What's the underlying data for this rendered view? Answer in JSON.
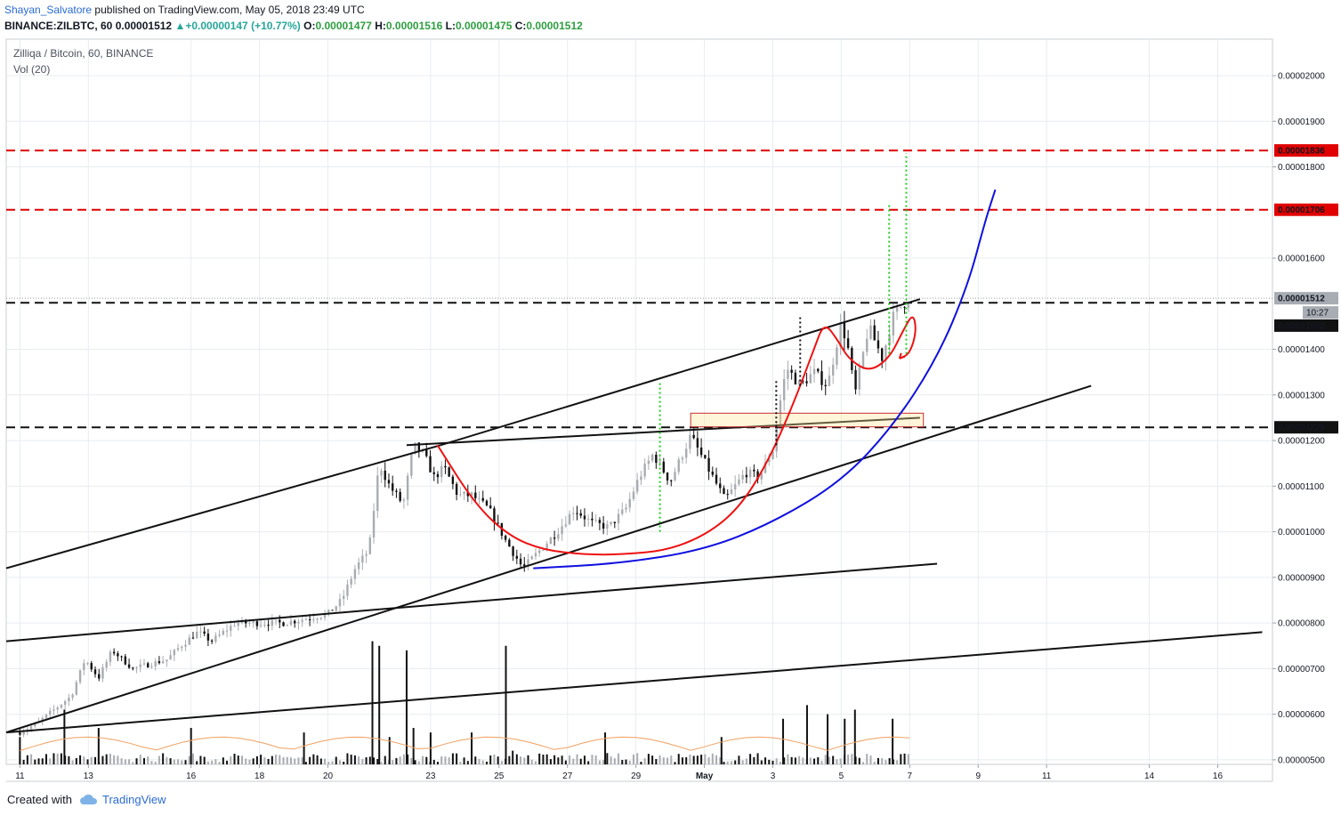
{
  "header": {
    "author": "Shayan_Salvatore",
    "published_text": "published on TradingView.com, May 05, 2018 23:49 UTC",
    "symbol": "BINANCE:ZILBTC, 60",
    "last": "0.00001512",
    "change": "+0.00000147 (+10.77%)",
    "open_label": "O:",
    "open": "0.00001477",
    "high_label": "H:",
    "high": "0.00001516",
    "low_label": "L:",
    "low": "0.00001475",
    "close_label": "C:",
    "close": "0.00001512"
  },
  "legend": {
    "title": "Zilliqa / Bitcoin, 60, BINANCE",
    "volume": "Vol (20)"
  },
  "footer": {
    "created_with": "Created with",
    "brand": "TradingView"
  },
  "colors": {
    "up": "#26a69a",
    "price_tag": "#e00000",
    "hline_red": "#e00000",
    "blue_curve": "#1010e0",
    "red_curve": "#ee1111",
    "green_dots": "#22cc22",
    "grid": "#e8ecf0"
  },
  "chart_data": {
    "type": "candlestick",
    "symbol": "ZILBTC",
    "exchange": "BINANCE",
    "interval": "60",
    "y_ticks": [
      "0.00002000",
      "0.00001900",
      "0.00001800",
      "0.00001600",
      "0.00001400",
      "0.00001300",
      "0.00001200",
      "0.00001100",
      "0.00001000",
      "0.00000900",
      "0.00000800",
      "0.00000700",
      "0.00000600",
      "0.00000500"
    ],
    "y_tick_values": [
      2e-05,
      1.9e-05,
      1.8e-05,
      1.6e-05,
      1.4e-05,
      1.3e-05,
      1.2e-05,
      1.1e-05,
      1e-05,
      9e-06,
      8e-06,
      7e-06,
      6e-06,
      5e-06
    ],
    "x_ticks": [
      "11",
      "13",
      "16",
      "18",
      "20",
      "23",
      "25",
      "27",
      "29",
      "May",
      "3",
      "5",
      "7",
      "9",
      "11",
      "14",
      "16"
    ],
    "x_tick_day_offsets": [
      0,
      2,
      5,
      7,
      9,
      12,
      14,
      16,
      18,
      20,
      22,
      24,
      26,
      28,
      30,
      33,
      35
    ],
    "price_labels": {
      "red_high": "0.00001836",
      "red_mid": "0.00001706",
      "last_price": "0.00001512",
      "countdown": "10:27",
      "black_upper": "0.00001502",
      "black_lower": "0.00001229"
    },
    "horizontal_levels": [
      {
        "value": 1.836e-05,
        "style": "red-dashed"
      },
      {
        "value": 1.706e-05,
        "style": "red-dashed"
      },
      {
        "value": 1.502e-05,
        "style": "black-dashed"
      },
      {
        "value": 1.229e-05,
        "style": "black-dashed"
      }
    ],
    "price_path": [
      [
        0,
        5.6e-06
      ],
      [
        0.5,
        5.8e-06
      ],
      [
        1,
        6.1e-06
      ],
      [
        1.5,
        6.4e-06
      ],
      [
        1.9,
        7.2e-06
      ],
      [
        2.3,
        6.8e-06
      ],
      [
        2.7,
        7.4e-06
      ],
      [
        3.3,
        7e-06
      ],
      [
        3.8,
        7.1e-06
      ],
      [
        4.3,
        7.2e-06
      ],
      [
        4.7,
        7.5e-06
      ],
      [
        5.2,
        7.8e-06
      ],
      [
        5.6,
        7.6e-06
      ],
      [
        6.3,
        8e-06
      ],
      [
        7,
        8e-06
      ],
      [
        7.7,
        8e-06
      ],
      [
        8.4,
        8.1e-06
      ],
      [
        9,
        8.2e-06
      ],
      [
        9.4,
        8.5e-06
      ],
      [
        9.8,
        9.2e-06
      ],
      [
        10.2,
        9.6e-06
      ],
      [
        10.5,
        1.15e-05
      ],
      [
        10.8,
        1.1e-05
      ],
      [
        11.2,
        1.06e-05
      ],
      [
        11.5,
        1.19e-05
      ],
      [
        11.8,
        1.17e-05
      ],
      [
        12.1,
        1.12e-05
      ],
      [
        12.4,
        1.14e-05
      ],
      [
        12.8,
        1.08e-05
      ],
      [
        13.2,
        1.08e-05
      ],
      [
        13.7,
        1.05e-05
      ],
      [
        14.2,
        9.8e-06
      ],
      [
        14.7,
        9.2e-06
      ],
      [
        15.2,
        9.6e-06
      ],
      [
        15.7,
        1e-05
      ],
      [
        16.2,
        1.05e-05
      ],
      [
        16.7,
        1.02e-05
      ],
      [
        17.2,
        1.01e-05
      ],
      [
        17.7,
        1.05e-05
      ],
      [
        18.1,
        1.12e-05
      ],
      [
        18.5,
        1.17e-05
      ],
      [
        19,
        1.11e-05
      ],
      [
        19.6,
        1.21e-05
      ],
      [
        20.1,
        1.14e-05
      ],
      [
        20.6,
        1.07e-05
      ],
      [
        21.2,
        1.13e-05
      ],
      [
        21.6,
        1.12e-05
      ],
      [
        22,
        1.18e-05
      ],
      [
        22.2,
        1.28e-05
      ],
      [
        22.4,
        1.36e-05
      ],
      [
        22.8,
        1.32e-05
      ],
      [
        23.2,
        1.35e-05
      ],
      [
        23.6,
        1.32e-05
      ],
      [
        24,
        1.46e-05
      ],
      [
        24.2,
        1.4e-05
      ],
      [
        24.4,
        1.3e-05
      ],
      [
        24.8,
        1.45e-05
      ],
      [
        25.2,
        1.38e-05
      ],
      [
        25.5,
        1.47e-05
      ],
      [
        25.8,
        1.5e-05
      ],
      [
        26,
        1.51e-05
      ]
    ],
    "volume_spikes": [
      [
        0,
        5.5e-06
      ],
      [
        1.3,
        6.1e-06
      ],
      [
        2.3,
        5.7e-06
      ],
      [
        5,
        5.7e-06
      ],
      [
        8.3,
        5.6e-06
      ],
      [
        10.3,
        7.6e-06
      ],
      [
        10.5,
        7.5e-06
      ],
      [
        10.8,
        5.5e-06
      ],
      [
        11.3,
        7.4e-06
      ],
      [
        11.5,
        5.7e-06
      ],
      [
        12,
        5.6e-06
      ],
      [
        13.2,
        5.6e-06
      ],
      [
        14.2,
        7.5e-06
      ],
      [
        14.4,
        5.2e-06
      ],
      [
        17.1,
        5.6e-06
      ],
      [
        20.5,
        5.5e-06
      ],
      [
        22.3,
        5.9e-06
      ],
      [
        23,
        6.2e-06
      ],
      [
        23.6,
        6e-06
      ],
      [
        24.1,
        5.9e-06
      ],
      [
        24.4,
        6.1e-06
      ],
      [
        25.5,
        5.9e-06
      ]
    ],
    "trendlines": [
      {
        "from": [
          -0.4,
          9.2e-06
        ],
        "to": [
          12.3,
          1.19e-05
        ],
        "color": "black"
      },
      {
        "from": [
          12.3,
          1.19e-05
        ],
        "to": [
          26.3,
          1.51e-05
        ],
        "color": "black"
      },
      {
        "from": [
          -0.4,
          5.6e-06
        ],
        "to": [
          31.3,
          1.32e-05
        ],
        "color": "black"
      },
      {
        "from": [
          -0.4,
          7.6e-06
        ],
        "to": [
          10.5,
          8.3e-06
        ],
        "color": "black"
      },
      {
        "from": [
          10.5,
          8.3e-06
        ],
        "to": [
          26.8,
          9.3e-06
        ],
        "color": "black"
      },
      {
        "from": [
          11.3,
          1.19e-05
        ],
        "to": [
          26.3,
          1.25e-05
        ],
        "color": "black"
      },
      {
        "from": [
          -0.4,
          5.6e-06
        ],
        "to": [
          36.3,
          7.8e-06
        ],
        "color": "black"
      }
    ],
    "curves": [
      {
        "name": "",
        "color": "blue",
        "points": [
          [
            15,
            9.2e-06
          ],
          [
            17.5,
            9.3e-06
          ],
          [
            20,
            9.6e-06
          ],
          [
            22,
            1.02e-05
          ],
          [
            24,
            1.11e-05
          ],
          [
            25.5,
            1.23e-05
          ],
          [
            26.8,
            1.38e-05
          ],
          [
            27.7,
            1.54e-05
          ],
          [
            28.2,
            1.68e-05
          ],
          [
            28.5,
            1.75e-05
          ]
        ]
      },
      {
        "name": "",
        "color": "red",
        "points": [
          [
            12.2,
            1.19e-05
          ],
          [
            13.3,
            1.06e-05
          ],
          [
            14.3,
            9.9e-06
          ],
          [
            15.3,
            9.6e-06
          ],
          [
            16.5,
            9.5e-06
          ],
          [
            17.6,
            9.5e-06
          ],
          [
            19,
            9.6e-06
          ],
          [
            20.2,
            1e-05
          ],
          [
            21.1,
            1.06e-05
          ],
          [
            21.9,
            1.16e-05
          ],
          [
            22.6,
            1.28e-05
          ],
          [
            23.2,
            1.4e-05
          ],
          [
            23.5,
            1.46e-05
          ],
          [
            23.9,
            1.42e-05
          ],
          [
            24.2,
            1.38e-05
          ],
          [
            24.8,
            1.35e-05
          ],
          [
            25.4,
            1.38e-05
          ],
          [
            25.8,
            1.44e-05
          ],
          [
            26.1,
            1.48e-05
          ],
          [
            26.2,
            1.44e-05
          ],
          [
            26,
            1.39e-05
          ],
          [
            25.7,
            1.38e-05
          ]
        ]
      }
    ],
    "dotted_projections": [
      {
        "x": 18.7,
        "from": 1e-05,
        "to": 1.33e-05,
        "color": "green"
      },
      {
        "x": 25.4,
        "from": 1.39e-05,
        "to": 1.72e-05,
        "color": "green"
      },
      {
        "x": 25.9,
        "from": 1.39e-05,
        "to": 1.83e-05,
        "color": "green"
      },
      {
        "x": 22.1,
        "from": 1.19e-05,
        "to": 1.33e-05,
        "color": "black"
      },
      {
        "x": 22.8,
        "from": 1.32e-05,
        "to": 1.47e-05,
        "color": "black"
      }
    ],
    "box": {
      "x0": 19.6,
      "x1": 26.4,
      "y0": 1.23e-05,
      "y1": 1.26e-05
    },
    "ylim": [
      4.9e-06,
      2.08e-05
    ],
    "xlim": [
      -0.4,
      36.6
    ],
    "grid": true
  }
}
